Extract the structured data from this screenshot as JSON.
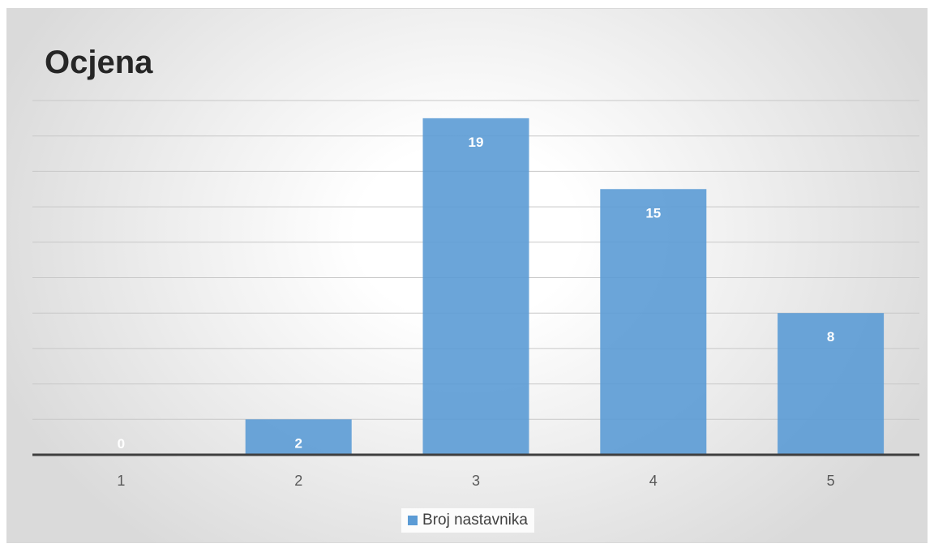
{
  "chart_data": {
    "type": "bar",
    "title": "Ocjena",
    "xlabel": "",
    "ylabel": "",
    "categories": [
      "1",
      "2",
      "3",
      "4",
      "5"
    ],
    "series": [
      {
        "name": "Broj nastavnika",
        "values": [
          0,
          2,
          19,
          15,
          8
        ],
        "color": "#5b9bd5"
      }
    ],
    "ylim": [
      0,
      20
    ],
    "grid": true,
    "legend": "bottom",
    "data_labels": true,
    "colors": {
      "bar": "#5b9bd5",
      "label_text": "#ffffff",
      "axis": "#3f3f3f",
      "grid": "#c8c8c8",
      "tick_text": "#595959"
    }
  }
}
